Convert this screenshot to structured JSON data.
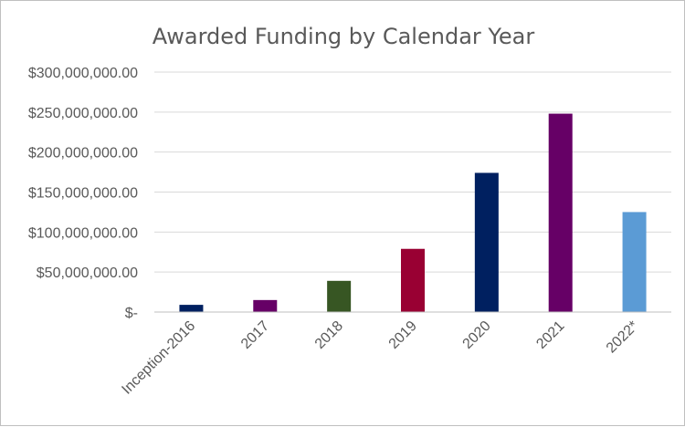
{
  "chart_data": {
    "type": "bar",
    "title": "Awarded Funding by Calendar Year",
    "xlabel": "",
    "ylabel": "",
    "categories": [
      "Inception-2016",
      "2017",
      "2018",
      "2019",
      "2020",
      "2021",
      "2022*"
    ],
    "values": [
      9000000,
      15000000,
      39000000,
      79000000,
      174000000,
      248000000,
      125000000
    ],
    "colors": [
      "#002060",
      "#660066",
      "#375623",
      "#990033",
      "#002060",
      "#660066",
      "#5b9bd5"
    ],
    "ylim": [
      0,
      300000000
    ],
    "yticks": [
      0,
      50000000,
      100000000,
      150000000,
      200000000,
      250000000,
      300000000
    ],
    "ytick_labels": [
      "$-",
      "$50,000,000.00",
      "$100,000,000.00",
      "$150,000,000.00",
      "$200,000,000.00",
      "$250,000,000.00",
      "$300,000,000.00"
    ],
    "grid": true,
    "legend": "none"
  }
}
